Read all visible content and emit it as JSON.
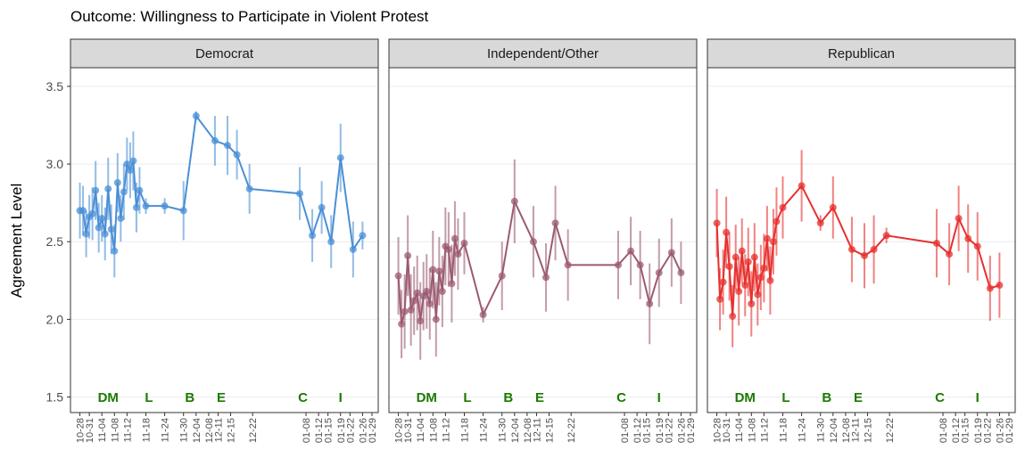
{
  "title": "Outcome: Willingness to Participate in Violent Protest",
  "y_label": "Agreement Level",
  "x": [
    "10-28",
    "10-29",
    "10-30",
    "10-31",
    "11-01",
    "11-02",
    "11-03",
    "11-04",
    "11-05",
    "11-06",
    "11-07",
    "11-08",
    "11-09",
    "11-10",
    "11-11",
    "11-12",
    "11-13",
    "11-14",
    "11-15",
    "11-16",
    "11-18",
    "11-24",
    "11-30",
    "12-04",
    "12-10",
    "12-14",
    "12-17",
    "12-21",
    "01-06",
    "01-10",
    "01-13",
    "01-16",
    "01-19",
    "01-23",
    "01-26"
  ],
  "xlim": [
    "10-25",
    "01-31"
  ],
  "xticks": [
    "10-28",
    "10-31",
    "11-04",
    "11-08",
    "11-12",
    "11-18",
    "11-24",
    "11-30",
    "12-04",
    "12-08",
    "12-11",
    "12-15",
    "12-22",
    "01-08",
    "01-12",
    "01-15",
    "01-19",
    "01-22",
    "01-26",
    "01-29"
  ],
  "ylim": [
    1.4,
    3.62
  ],
  "yticks": [
    1.5,
    {
      "value": 2.0,
      "label": "2.0"
    },
    2.5,
    {
      "value": 3.0,
      "label": "3.0"
    },
    3.5
  ],
  "grid": true,
  "events": [
    {
      "label": "DM",
      "x": "11-06"
    },
    {
      "label": "L",
      "x": "11-19"
    },
    {
      "label": "B",
      "x": "12-02"
    },
    {
      "label": "E",
      "x": "12-12"
    },
    {
      "label": "C",
      "x": "01-07"
    },
    {
      "label": "I",
      "x": "01-19"
    }
  ],
  "event_color": "#1a7a00",
  "chart_data": [
    {
      "type": "line",
      "title": "Democrat",
      "color": "#4a8fd6",
      "values": [
        2.7,
        2.7,
        2.55,
        2.66,
        2.68,
        2.83,
        2.59,
        2.65,
        2.55,
        2.84,
        2.58,
        2.44,
        2.88,
        2.65,
        2.82,
        3.0,
        2.96,
        3.02,
        2.72,
        2.83,
        2.73,
        2.73,
        2.7,
        3.31,
        3.15,
        3.12,
        3.06,
        2.84,
        2.81,
        2.54,
        2.72,
        2.5,
        3.04,
        2.45,
        2.54
      ],
      "errors": [
        0.18,
        0.16,
        0.15,
        0.14,
        0.17,
        0.19,
        0.16,
        0.15,
        0.17,
        0.2,
        0.16,
        0.17,
        0.19,
        0.15,
        0.18,
        0.17,
        0.18,
        0.19,
        0.16,
        0.15,
        0.05,
        0.05,
        0.19,
        0.03,
        0.16,
        0.19,
        0.16,
        0.16,
        0.17,
        0.17,
        0.17,
        0.17,
        0.22,
        0.18,
        0.09
      ]
    },
    {
      "type": "line",
      "title": "Independent/Other",
      "color": "#9b5a72",
      "values": [
        2.28,
        1.97,
        2.05,
        2.41,
        2.06,
        2.12,
        2.17,
        1.99,
        2.15,
        2.18,
        2.1,
        2.32,
        2.0,
        2.31,
        2.18,
        2.47,
        2.45,
        2.23,
        2.52,
        2.42,
        2.49,
        2.03,
        2.28,
        2.76,
        2.5,
        2.27,
        2.62,
        2.35,
        2.35,
        2.44,
        2.35,
        2.1,
        2.3,
        2.43,
        2.3
      ],
      "errors": [
        0.25,
        0.22,
        0.24,
        0.26,
        0.23,
        0.22,
        0.24,
        0.25,
        0.22,
        0.24,
        0.23,
        0.25,
        0.24,
        0.22,
        0.23,
        0.25,
        0.24,
        0.25,
        0.24,
        0.23,
        0.2,
        0.05,
        0.22,
        0.27,
        0.23,
        0.22,
        0.24,
        0.23,
        0.22,
        0.22,
        0.22,
        0.26,
        0.22,
        0.22,
        0.2
      ]
    },
    {
      "type": "line",
      "title": "Republican",
      "color": "#e6302e",
      "values": [
        2.62,
        2.13,
        2.24,
        2.56,
        2.34,
        2.02,
        2.4,
        2.18,
        2.44,
        2.22,
        2.37,
        2.1,
        2.4,
        2.16,
        2.27,
        2.33,
        2.52,
        2.25,
        2.5,
        2.63,
        2.72,
        2.86,
        2.62,
        2.72,
        2.45,
        2.41,
        2.45,
        2.54,
        2.49,
        2.42,
        2.65,
        2.52,
        2.47,
        2.2,
        2.22
      ],
      "errors": [
        0.22,
        0.2,
        0.21,
        0.23,
        0.22,
        0.2,
        0.21,
        0.22,
        0.21,
        0.2,
        0.22,
        0.21,
        0.22,
        0.2,
        0.21,
        0.22,
        0.21,
        0.22,
        0.21,
        0.22,
        0.2,
        0.23,
        0.05,
        0.2,
        0.21,
        0.21,
        0.22,
        0.05,
        0.22,
        0.2,
        0.21,
        0.22,
        0.22,
        0.21,
        0.21
      ]
    }
  ]
}
